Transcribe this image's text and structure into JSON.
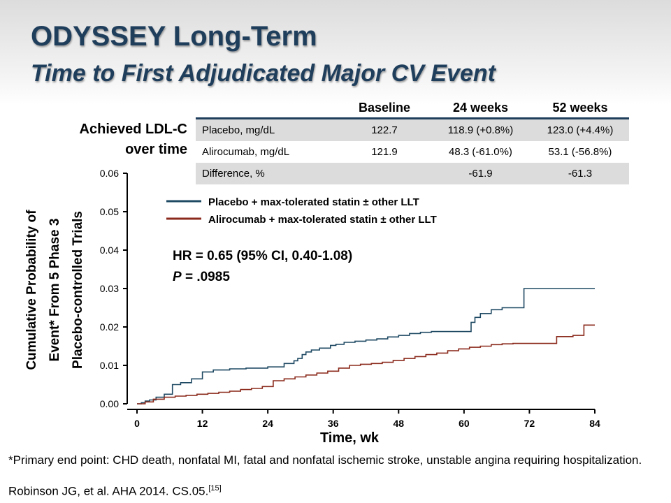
{
  "slide": {
    "title": "ODYSSEY Long-Term",
    "subtitle": "Time to First Adjudicated Major CV Event",
    "footnote": "*Primary end point: CHD death, nonfatal MI, fatal and nonfatal ischemic stroke, unstable angina requiring hospitalization.",
    "reference": "Robinson JG, et al. AHA 2014. CS.05.",
    "reference_sup": "[15]"
  },
  "ldl_table": {
    "label_line1": "Achieved LDL-C",
    "label_line2": "over time",
    "headers": [
      "",
      "Baseline",
      "24 weeks",
      "52 weeks"
    ],
    "rows": [
      [
        "Placebo, mg/dL",
        "122.7",
        "118.9 (+0.8%)",
        "123.0 (+4.4%)"
      ],
      [
        "Alirocumab, mg/dL",
        "121.9",
        "48.3 (-61.0%)",
        "53.1 (-56.8%)"
      ],
      [
        "Difference, %",
        "",
        "-61.9",
        "-61.3"
      ]
    ]
  },
  "chart_data": {
    "type": "line",
    "xlabel": "Time, wk",
    "ylabel_lines": [
      "Cumulative Probability of",
      "Event* From 5 Phase 3",
      "Placebo-controlled Trials"
    ],
    "xlim": [
      0,
      84
    ],
    "ylim": [
      0,
      0.06
    ],
    "xticks": [
      0,
      12,
      24,
      36,
      48,
      60,
      72,
      84
    ],
    "xtick_labels": [
      "0",
      "12",
      "24",
      "36",
      "48",
      "60",
      "72",
      "84"
    ],
    "yticks": [
      0,
      0.01,
      0.02,
      0.03,
      0.04,
      0.05,
      0.06
    ],
    "ytick_labels": [
      "0.00",
      "0.01",
      "0.02",
      "0.03",
      "0.04",
      "0.05",
      "0.06"
    ],
    "legend_position": "top",
    "annotation_hr": "HR = 0.65 (95% CI, 0.40-1.08)",
    "annotation_p_label": "P",
    "annotation_p_value": " = .0985",
    "series": [
      {
        "name": "Placebo + max-tolerated statin ± other LLT",
        "color": "#1f4a63",
        "step": true,
        "x": [
          0,
          0.8,
          1.5,
          2.3,
          3.5,
          5,
          6.5,
          8,
          10,
          12,
          14,
          17,
          20,
          24,
          27,
          28.8,
          29.5,
          30.3,
          31,
          32,
          33.5,
          35.5,
          36.5,
          38,
          40,
          42,
          44,
          46,
          48,
          50,
          52,
          54,
          56,
          58,
          60,
          61.3,
          62,
          63,
          65,
          67,
          71,
          72,
          75,
          78,
          82,
          84
        ],
        "y": [
          0,
          0.0003,
          0.0007,
          0.001,
          0.0017,
          0.0025,
          0.005,
          0.0055,
          0.0065,
          0.0083,
          0.0088,
          0.0091,
          0.0093,
          0.0096,
          0.0105,
          0.0112,
          0.0118,
          0.0128,
          0.0135,
          0.014,
          0.0145,
          0.0152,
          0.0155,
          0.016,
          0.0163,
          0.0166,
          0.0169,
          0.0174,
          0.0178,
          0.0183,
          0.0186,
          0.0188,
          0.0188,
          0.0188,
          0.0188,
          0.0212,
          0.0225,
          0.0235,
          0.0245,
          0.025,
          0.03,
          0.03,
          0.03,
          0.03,
          0.03,
          0.03
        ]
      },
      {
        "name": "Alirocumab + max-tolerated statin ± other LLT",
        "color": "#8b2a1c",
        "step": true,
        "x": [
          0,
          1.5,
          3,
          5,
          7,
          9,
          11,
          13,
          15,
          17,
          19,
          21,
          23,
          25,
          27,
          29,
          31,
          33,
          35,
          37,
          39,
          41,
          43,
          45,
          47,
          49,
          51,
          53,
          55,
          57,
          59,
          61,
          63,
          65,
          67,
          69,
          72,
          75,
          77,
          80,
          82,
          84
        ],
        "y": [
          0,
          0.0005,
          0.0012,
          0.0017,
          0.002,
          0.0022,
          0.0025,
          0.0027,
          0.003,
          0.0033,
          0.0037,
          0.004,
          0.0045,
          0.006,
          0.0065,
          0.007,
          0.0075,
          0.008,
          0.0085,
          0.0093,
          0.01,
          0.0103,
          0.0105,
          0.0108,
          0.0113,
          0.0118,
          0.0123,
          0.0128,
          0.0132,
          0.0138,
          0.0143,
          0.0147,
          0.015,
          0.0154,
          0.0156,
          0.0157,
          0.0157,
          0.0157,
          0.0175,
          0.0178,
          0.0205,
          0.0205
        ]
      }
    ]
  }
}
